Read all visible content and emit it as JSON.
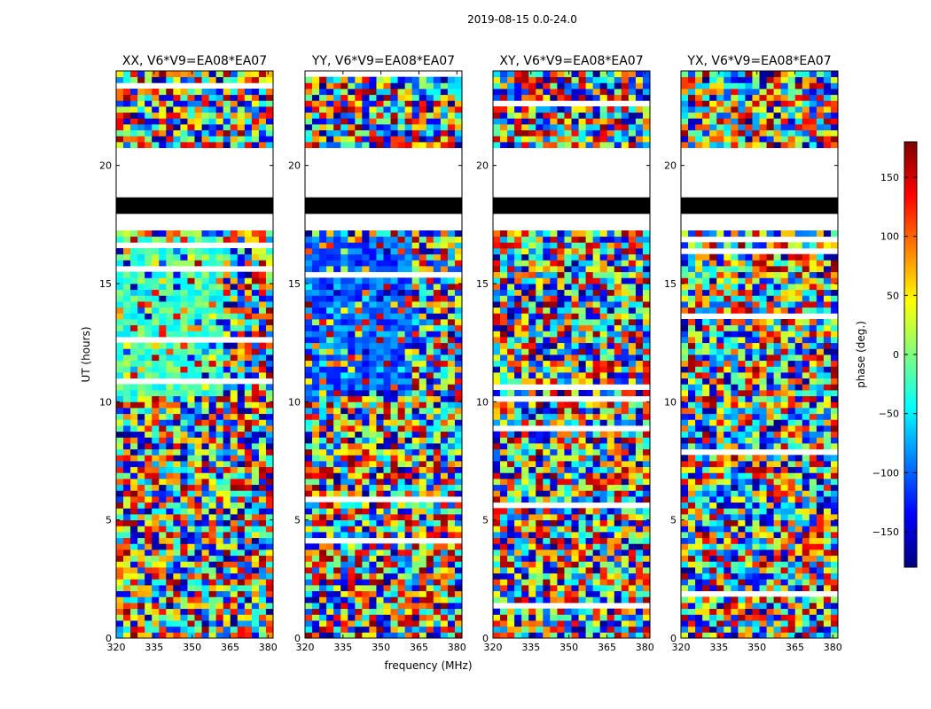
{
  "chart_data": {
    "type": "heatmap",
    "suptitle": "2019-08-15 0.0-24.0",
    "xlabel": "frequency (MHz)",
    "ylabel": "UT (hours)",
    "xlim": [
      320,
      382
    ],
    "ylim": [
      0,
      24
    ],
    "xticks": [
      "320",
      "335",
      "350",
      "365",
      "380"
    ],
    "xtick_values": [
      320,
      335,
      350,
      365,
      380
    ],
    "yticks": [
      "0",
      "5",
      "10",
      "15",
      "20"
    ],
    "ytick_values": [
      0,
      5,
      10,
      15,
      20
    ],
    "colorbar": {
      "label": "phase (deg.)",
      "range": [
        -180,
        180
      ],
      "ticks": [
        "150",
        "100",
        "50",
        "0",
        "−50",
        "−100",
        "−150"
      ],
      "tick_values": [
        150,
        100,
        50,
        0,
        -50,
        -100,
        -150
      ],
      "colormap": [
        "#00007f",
        "#0000ff",
        "#007fff",
        "#00ffff",
        "#7fff7f",
        "#ffff00",
        "#ff7f00",
        "#ff0000",
        "#7f0000"
      ]
    },
    "panels": [
      {
        "title": "XX, V6*V9=EA08*EA07",
        "baseline_phase": -20
      },
      {
        "title": "YY, V6*V9=EA08*EA07",
        "baseline_phase": -100
      },
      {
        "title": "XY, V6*V9=EA08*EA07",
        "baseline_phase": null
      },
      {
        "title": "YX, V6*V9=EA08*EA07",
        "baseline_phase": null
      }
    ],
    "flagged_hours": [
      [
        17.95,
        18.65
      ]
    ],
    "no_data_hours": [
      [
        17.15,
        20.65
      ]
    ]
  }
}
